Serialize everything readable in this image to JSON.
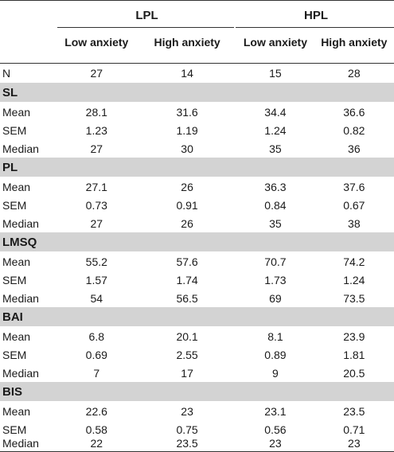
{
  "header": {
    "group1": "LPL",
    "group2": "HPL",
    "columns": [
      "Low anxiety",
      "High anxiety",
      "Low anxiety",
      "High anxiety"
    ]
  },
  "n_row": {
    "label": "N",
    "values": [
      "27",
      "14",
      "15",
      "28"
    ]
  },
  "sections": [
    {
      "title": "SL",
      "rows": [
        {
          "label": "Mean",
          "values": [
            "28.1",
            "31.6",
            "34.4",
            "36.6"
          ]
        },
        {
          "label": "SEM",
          "values": [
            "1.23",
            "1.19",
            "1.24",
            "0.82"
          ]
        },
        {
          "label": "Median",
          "values": [
            "27",
            "30",
            "35",
            "36"
          ]
        }
      ]
    },
    {
      "title": "PL",
      "rows": [
        {
          "label": "Mean",
          "values": [
            "27.1",
            "26",
            "36.3",
            "37.6"
          ]
        },
        {
          "label": "SEM",
          "values": [
            "0.73",
            "0.91",
            "0.84",
            "0.67"
          ]
        },
        {
          "label": "Median",
          "values": [
            "27",
            "26",
            "35",
            "38"
          ]
        }
      ]
    },
    {
      "title": "LMSQ",
      "rows": [
        {
          "label": "Mean",
          "values": [
            "55.2",
            "57.6",
            "70.7",
            "74.2"
          ]
        },
        {
          "label": "SEM",
          "values": [
            "1.57",
            "1.74",
            "1.73",
            "1.24"
          ]
        },
        {
          "label": "Median",
          "values": [
            "54",
            "56.5",
            "69",
            "73.5"
          ]
        }
      ]
    },
    {
      "title": "BAI",
      "rows": [
        {
          "label": "Mean",
          "values": [
            "6.8",
            "20.1",
            "8.1",
            "23.9"
          ]
        },
        {
          "label": "SEM",
          "values": [
            "0.69",
            "2.55",
            "0.89",
            "1.81"
          ]
        },
        {
          "label": "Median",
          "values": [
            "7",
            "17",
            "9",
            "20.5"
          ]
        }
      ]
    },
    {
      "title": "BIS",
      "rows": [
        {
          "label": "Mean",
          "values": [
            "22.6",
            "23",
            "23.1",
            "23.5"
          ]
        },
        {
          "label": "SEM",
          "values": [
            "0.58",
            "0.75",
            "0.56",
            "0.71"
          ]
        },
        {
          "label": "Median",
          "values": [
            "22",
            "23.5",
            "23",
            "23"
          ]
        }
      ]
    }
  ]
}
